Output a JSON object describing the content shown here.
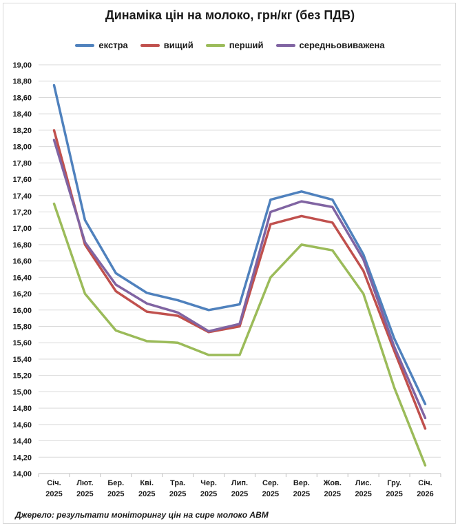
{
  "chart_data": {
    "type": "line",
    "title": "Динаміка цін на молоко, грн/кг (без ПДВ)",
    "categories": [
      [
        "Січ.",
        "2025"
      ],
      [
        "Лют.",
        "2025"
      ],
      [
        "Бер.",
        "2025"
      ],
      [
        "Кві.",
        "2025"
      ],
      [
        "Тра.",
        "2025"
      ],
      [
        "Чер.",
        "2025"
      ],
      [
        "Лип.",
        "2025"
      ],
      [
        "Сер.",
        "2025"
      ],
      [
        "Вер.",
        "2025"
      ],
      [
        "Жов.",
        "2025"
      ],
      [
        "Лис.",
        "2025"
      ],
      [
        "Гру.",
        "2025"
      ],
      [
        "Січ.",
        "2026"
      ]
    ],
    "ylim": [
      14.0,
      19.0
    ],
    "ytick_step": 0.2,
    "ytick_labels": [
      "14,00",
      "14,20",
      "14,40",
      "14,60",
      "14,80",
      "15,00",
      "15,20",
      "15,40",
      "15,60",
      "15,80",
      "16,00",
      "16,20",
      "16,40",
      "16,60",
      "16,80",
      "17,00",
      "17,20",
      "17,40",
      "17,60",
      "17,80",
      "18,00",
      "18,20",
      "18,40",
      "18,60",
      "18,80",
      "19,00"
    ],
    "series": [
      {
        "name": "екстра",
        "color": "#4f81bd",
        "values": [
          18.75,
          17.1,
          16.45,
          16.21,
          16.12,
          16.0,
          16.07,
          17.35,
          17.45,
          17.35,
          16.68,
          15.65,
          14.85
        ]
      },
      {
        "name": "вищий",
        "color": "#c0504d",
        "values": [
          18.2,
          16.8,
          16.23,
          15.98,
          15.93,
          15.73,
          15.8,
          17.05,
          17.15,
          17.07,
          16.48,
          15.5,
          14.55
        ]
      },
      {
        "name": "перший",
        "color": "#9bbb59",
        "values": [
          17.3,
          16.2,
          15.75,
          15.62,
          15.6,
          15.45,
          15.45,
          16.4,
          16.8,
          16.73,
          16.2,
          15.05,
          14.1
        ]
      },
      {
        "name": "середньовиважена",
        "color": "#8064a2",
        "values": [
          18.08,
          16.83,
          16.31,
          16.08,
          15.97,
          15.74,
          15.83,
          17.2,
          17.33,
          17.26,
          16.62,
          15.55,
          14.68
        ]
      }
    ],
    "grid": true,
    "legend": "top-center"
  },
  "source": "Джерело: результати моніторингу цін на сире молоко АВМ"
}
